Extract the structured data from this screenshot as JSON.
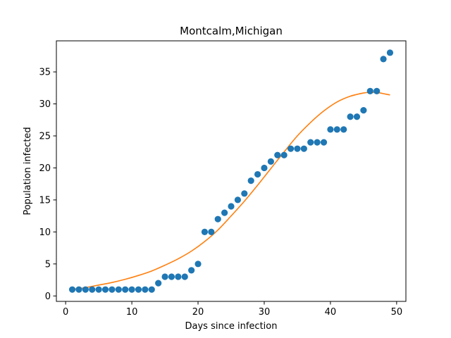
{
  "chart_data": {
    "type": "scatter",
    "title": "Montcalm,Michigan",
    "xlabel": "Days since infection",
    "ylabel": "Population infected",
    "xlim": [
      -1.4,
      51.4
    ],
    "ylim": [
      -0.85,
      39.85
    ],
    "xticks": [
      0,
      10,
      20,
      30,
      40,
      50
    ],
    "yticks": [
      0,
      5,
      10,
      15,
      20,
      25,
      30,
      35
    ],
    "grid": false,
    "legend": "none",
    "series": [
      {
        "kind": "scatter",
        "color": "#1f77b4",
        "x": [
          1,
          2,
          3,
          4,
          5,
          6,
          7,
          8,
          9,
          10,
          11,
          12,
          13,
          14,
          15,
          16,
          17,
          18,
          19,
          20,
          21,
          22,
          23,
          24,
          25,
          26,
          27,
          28,
          29,
          30,
          31,
          32,
          33,
          34,
          35,
          36,
          37,
          38,
          39,
          40,
          41,
          42,
          43,
          44,
          45,
          46,
          47,
          48,
          49
        ],
        "y": [
          1,
          1,
          1,
          1,
          1,
          1,
          1,
          1,
          1,
          1,
          1,
          1,
          1,
          2,
          3,
          3,
          3,
          3,
          4,
          5,
          10,
          10,
          12,
          13,
          14,
          15,
          16,
          18,
          19,
          20,
          21,
          22,
          22,
          23,
          23,
          23,
          24,
          24,
          24,
          26,
          26,
          26,
          28,
          28,
          29,
          32,
          32,
          37,
          38
        ]
      },
      {
        "kind": "line",
        "color": "#ff7f0e",
        "x": [
          1,
          3,
          5,
          7,
          9,
          11,
          13,
          15,
          17,
          19,
          21,
          23,
          25,
          27,
          29,
          31,
          33,
          35,
          37,
          39,
          41,
          43,
          45,
          46,
          47,
          48,
          49
        ],
        "y": [
          1.0,
          1.3,
          1.7,
          2.1,
          2.6,
          3.2,
          3.9,
          4.8,
          5.8,
          7.0,
          8.5,
          10.3,
          12.5,
          14.8,
          17.3,
          19.9,
          22.5,
          25.0,
          27.1,
          28.9,
          30.3,
          31.2,
          31.7,
          31.8,
          31.8,
          31.6,
          31.4
        ]
      }
    ]
  }
}
